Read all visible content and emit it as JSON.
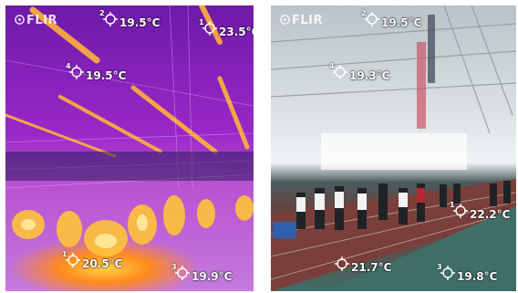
{
  "brand": "FLIR",
  "thermal": {
    "markers": [
      {
        "num": "1",
        "temp": "23.5°C"
      },
      {
        "num": "2",
        "temp": "19.5°C"
      },
      {
        "num": "4",
        "temp": "19.5°C"
      },
      {
        "num": "1",
        "temp": "20.5°C"
      },
      {
        "num": "3",
        "temp": "19.9°C"
      }
    ]
  },
  "visible": {
    "markers": [
      {
        "num": "2",
        "temp": "19.5°C"
      },
      {
        "num": "4",
        "temp": "19.3°C"
      },
      {
        "num": "1",
        "temp": "22.2°C"
      },
      {
        "num": "",
        "temp": "21.7°C"
      },
      {
        "num": "3",
        "temp": "19.8°C"
      }
    ]
  },
  "colors": {
    "thermal_purple": "#9a28c8",
    "thermal_hot": "#ffd24a",
    "track_red": "#6c3e3a",
    "floor_green": "#3f6e66"
  }
}
